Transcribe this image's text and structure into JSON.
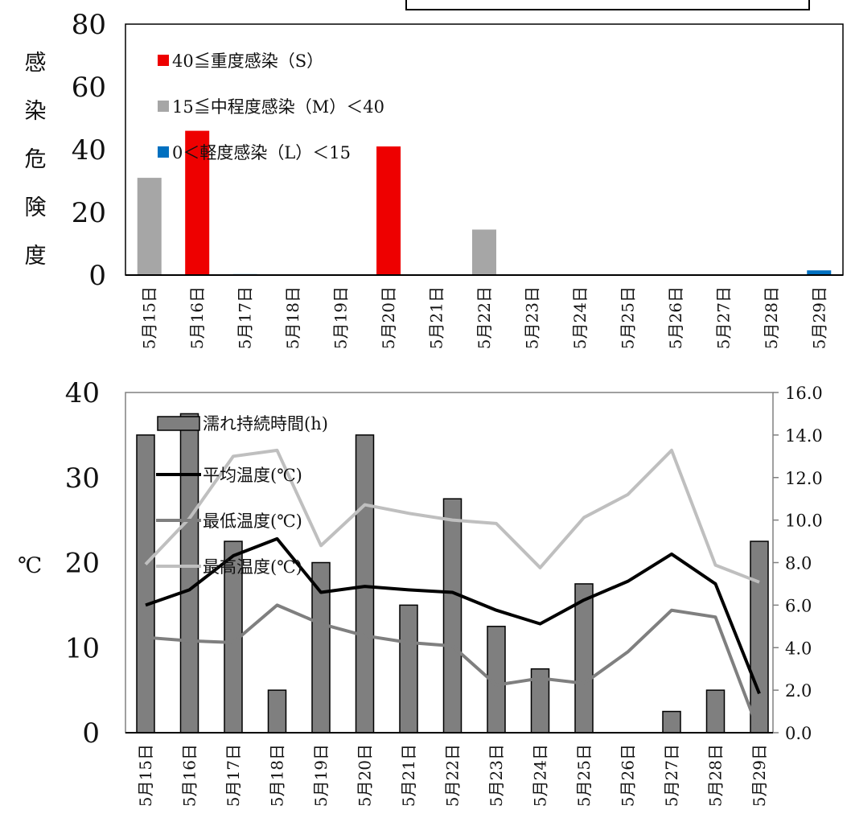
{
  "colors": {
    "severe": "#ee0000",
    "moderate": "#a6a6a6",
    "light": "#0070c0",
    "wet_bar": "#7f7f7f",
    "avg_line": "#000000",
    "min_line": "#7f7f7f",
    "max_line": "#bfbfbf"
  },
  "chart_data": [
    {
      "type": "bar",
      "categories": [
        "5月15日",
        "5月16日",
        "5月17日",
        "5月18日",
        "5月19日",
        "5月20日",
        "5月21日",
        "5月22日",
        "5月23日",
        "5月24日",
        "5月25日",
        "5月26日",
        "5月27日",
        "5月28日",
        "5月29日"
      ],
      "series": [
        {
          "name": "40≦重度感染（S）",
          "color_key": "severe",
          "values": [
            0,
            46,
            0,
            0,
            0,
            41,
            0,
            0,
            0,
            0,
            0,
            0,
            0,
            0,
            0
          ]
        },
        {
          "name": "15≦中程度感染（M）＜40",
          "color_key": "moderate",
          "values": [
            31,
            0,
            0,
            0,
            0,
            0,
            0,
            14.5,
            0,
            0,
            0,
            0,
            0,
            0,
            0
          ]
        },
        {
          "name": "0＜軽度感染（L）＜15",
          "color_key": "light",
          "values": [
            0,
            0,
            0.3,
            0,
            0,
            0,
            0,
            0,
            0,
            0,
            0,
            0,
            0,
            0,
            1.5
          ]
        }
      ],
      "ylabel_chars": [
        "感",
        "染",
        "危",
        "険",
        "度"
      ],
      "ylim": [
        0,
        80
      ],
      "yticks": [
        "0",
        "20",
        "40",
        "60",
        "80"
      ],
      "legend_position": "top-left"
    },
    {
      "type": "bar+line",
      "categories": [
        "5月15日",
        "5月16日",
        "5月17日",
        "5月18日",
        "5月19日",
        "5月20日",
        "5月21日",
        "5月22日",
        "5月23日",
        "5月24日",
        "5月25日",
        "5月26日",
        "5月27日",
        "5月28日",
        "5月29日"
      ],
      "bar_series": {
        "name": "濡れ持続時間(h)",
        "color_key": "wet_bar",
        "axis": "right",
        "values": [
          14,
          15,
          9,
          2,
          8,
          14,
          6,
          11,
          5,
          3,
          7,
          0,
          1,
          2,
          9
        ]
      },
      "line_series": [
        {
          "name": "平均温度(℃)",
          "color_key": "avg_line",
          "axis": "left",
          "values": [
            15,
            16.8,
            20.8,
            22.8,
            16.5,
            17.2,
            16.8,
            16.5,
            14.4,
            12.8,
            15.6,
            17.8,
            21,
            17.5,
            4.6
          ]
        },
        {
          "name": "最低温度(℃)",
          "color_key": "min_line",
          "axis": "left",
          "values": [
            11.2,
            10.8,
            10.6,
            15,
            12.8,
            11.4,
            10.6,
            10.2,
            5.6,
            6.4,
            5.8,
            9.5,
            14.4,
            13.6,
            0
          ]
        },
        {
          "name": "最高温度(℃)",
          "color_key": "max_line",
          "axis": "left",
          "values": [
            19.8,
            25.2,
            32.5,
            33.2,
            22,
            26.8,
            25.8,
            25,
            24.6,
            19.4,
            25.3,
            28,
            33.2,
            19.7,
            17.7
          ]
        }
      ],
      "ylabel_left": "℃",
      "ylim_left": [
        0,
        40
      ],
      "yticks_left": [
        "0",
        "10",
        "20",
        "30",
        "40"
      ],
      "ylim_right": [
        0,
        16
      ],
      "yticks_right": [
        "0.0",
        "2.0",
        "4.0",
        "6.0",
        "8.0",
        "10.0",
        "12.0",
        "14.0",
        "16.0"
      ],
      "legend_position": "top-left"
    }
  ]
}
